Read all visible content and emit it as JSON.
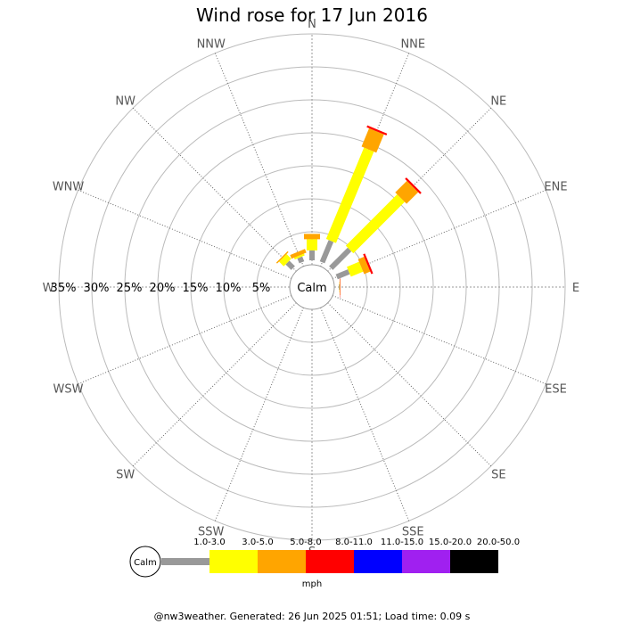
{
  "title": "Wind rose for 17 Jun 2016",
  "footer": "@nw3weather. Generated: 26 Jun 2025 01:51; Load time: 0.09 s",
  "calm_label": "Calm",
  "unit_label": "mph",
  "colors": {
    "bins": [
      "#999999",
      "#ffff00",
      "#ffa500",
      "#ff0000",
      "#0000ff",
      "#a020f0",
      "#000000"
    ],
    "ring": "#bbbbbb",
    "spoke": "#666666",
    "axis_lines": "#999999"
  },
  "chart_data": {
    "type": "wind-rose",
    "title": "Wind rose for 17 Jun 2016",
    "unit": "mph",
    "directions": [
      "N",
      "NNE",
      "NE",
      "ENE",
      "E",
      "ESE",
      "SE",
      "SSE",
      "S",
      "SSW",
      "SW",
      "WSW",
      "W",
      "WNW",
      "NW",
      "NNW"
    ],
    "ring_labels": [
      "5%",
      "10%",
      "15%",
      "20%",
      "25%",
      "30%",
      "35%"
    ],
    "rings_percent": [
      5,
      10,
      15,
      20,
      25,
      30,
      35
    ],
    "speed_bins": [
      "1.0-3.0",
      "3.0-5.0",
      "5.0-8.0",
      "8.0-11.0",
      "11.0-15.0",
      "15.0-20.0",
      "20.0-50.0"
    ],
    "series": [
      {
        "name": "1.0-3.0",
        "values": [
          1.5,
          3.5,
          4.0,
          0,
          0.1,
          0,
          0,
          0,
          0,
          0,
          0,
          0,
          0,
          0,
          1.2,
          0.8
        ]
      },
      {
        "name": "3.0-5.0",
        "values": [
          1.7,
          15.0,
          11.0,
          0,
          0.05,
          0,
          0,
          0,
          0,
          0,
          0,
          0,
          0,
          0,
          1.0,
          0.3
        ]
      },
      {
        "name": "5.0-8.0",
        "values": [
          0.8,
          3.0,
          2.5,
          0,
          0.05,
          0,
          0,
          0,
          0,
          0,
          0,
          0,
          0,
          0,
          0.2,
          0.6
        ]
      },
      {
        "name": "8.0-11.0",
        "values": [
          0,
          0.3,
          0.3,
          0,
          0.05,
          0,
          0,
          0,
          0,
          0,
          0,
          0,
          0,
          0,
          0,
          0
        ]
      },
      {
        "name": "11.0-15.0",
        "values": [
          0,
          0,
          0,
          0,
          0,
          0,
          0,
          0,
          0,
          0,
          0,
          0,
          0,
          0,
          0,
          0
        ]
      },
      {
        "name": "15.0-20.0",
        "values": [
          0,
          0,
          0,
          0,
          0,
          0,
          0,
          0,
          0,
          0,
          0,
          0,
          0,
          0,
          0,
          0
        ]
      },
      {
        "name": "20.0-50.0",
        "values": [
          0,
          0,
          0,
          0,
          0,
          0,
          0,
          0,
          0,
          0,
          0,
          0,
          0,
          0,
          0,
          0
        ]
      }
    ],
    "extra_bars": [
      {
        "direction": "ENE",
        "segments": [
          2.0,
          2.0,
          1.0,
          0.3
        ]
      }
    ]
  }
}
